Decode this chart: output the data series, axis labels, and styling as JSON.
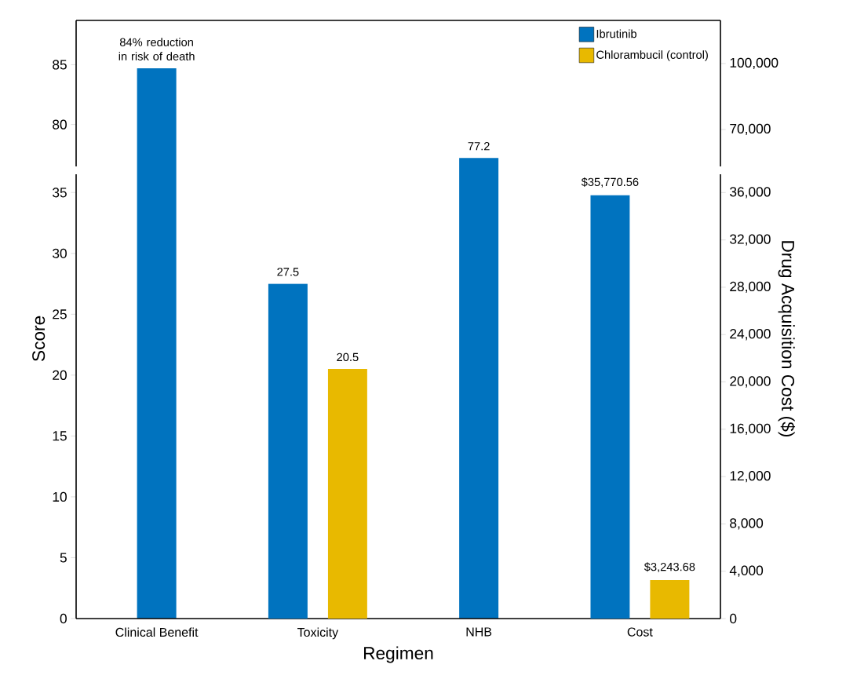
{
  "chart_data": [
    {
      "type": "bar",
      "categories": [
        "Clinical Benefit",
        "Toxicity",
        "NHB",
        "Cost"
      ],
      "series": [
        {
          "name": "Ibrutinib",
          "color": "#0073bf",
          "values": [
            84.7,
            null,
            77.2,
            null
          ],
          "value_labels": [
            null,
            null,
            "77.2",
            null
          ]
        },
        {
          "name": "Chlorambucil (control)",
          "color": "#e8b900",
          "values": [
            null,
            null,
            null,
            null
          ]
        }
      ],
      "ylim": [
        76.5,
        88.7
      ],
      "yticks": [
        80,
        85
      ],
      "y2lim": [
        53200,
        119600
      ],
      "y2ticks": [
        {
          "value": 70000,
          "label": "70,000"
        },
        {
          "value": 100000,
          "label": "100,000"
        }
      ],
      "annotations": [
        {
          "text": "84% reduction in risk of death",
          "x": "Clinical Benefit",
          "y": 84.7
        }
      ],
      "legend": "top right",
      "tick_labels": "y"
    },
    {
      "type": "bar",
      "categories": [
        "Clinical Benefit",
        "Toxicity",
        "NHB",
        "Cost"
      ],
      "series": [
        {
          "color": "#0073bf",
          "values": [
            null,
            27.5,
            null,
            null
          ],
          "value_labels": [
            null,
            "27.5",
            null,
            null
          ]
        },
        {
          "color": "#e8b900",
          "values": [
            null,
            20.5,
            null,
            null
          ],
          "value_labels": [
            null,
            "20.5",
            null,
            null
          ]
        },
        {
          "color": "#0073bf",
          "axis": "y2",
          "values": [
            null,
            null,
            null,
            35770.56
          ],
          "value_labels": [
            null,
            null,
            null,
            "$35,770.56"
          ]
        },
        {
          "color": "#e8b900",
          "axis": "y2",
          "values": [
            null,
            null,
            null,
            3243.68
          ],
          "value_labels": [
            null,
            null,
            null,
            "$3,243.68"
          ]
        }
      ],
      "ylim": [
        0,
        36.5
      ],
      "yticks": [
        0,
        5,
        10,
        15,
        20,
        25,
        30,
        35
      ],
      "y2lim": [
        0,
        37550
      ],
      "y2ticks": [
        0,
        {
          "value": 4000,
          "label": "4,000"
        },
        {
          "value": 8000,
          "label": "8,000"
        },
        {
          "value": 12000,
          "label": "12,000"
        },
        {
          "value": 16000,
          "label": "16,000"
        },
        {
          "value": 20000,
          "label": "20,000"
        },
        {
          "value": 24000,
          "label": "24,000"
        },
        {
          "value": 28000,
          "label": "28,000"
        },
        {
          "value": 32000,
          "label": "32,000"
        },
        {
          "value": 36000,
          "label": "36,000"
        }
      ],
      "xlabel": "Regimen",
      "ylabel": "Score",
      "y2label": "Drug Acquisition Cost ($)"
    }
  ]
}
